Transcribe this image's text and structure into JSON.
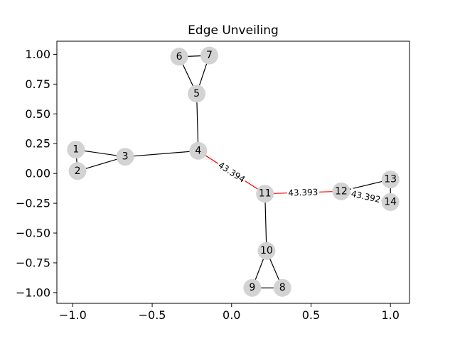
{
  "chart_data": {
    "type": "network",
    "title": "Edge Unveiling",
    "xlim": [
      -1.1,
      1.12
    ],
    "ylim": [
      -1.09,
      1.11
    ],
    "x_ticks": [
      "−1.0",
      "−0.5",
      "0.0",
      "0.5",
      "1.0"
    ],
    "x_tick_values": [
      -1.0,
      -0.5,
      0.0,
      0.5,
      1.0
    ],
    "y_ticks": [
      "1.00",
      "0.75",
      "0.50",
      "0.25",
      "0.00",
      "−0.25",
      "−0.50",
      "−0.75",
      "−1.00"
    ],
    "y_tick_values": [
      1.0,
      0.75,
      0.5,
      0.25,
      0.0,
      -0.25,
      -0.5,
      -0.75,
      -1.0
    ],
    "node_color": "#d3d3d3",
    "nodes": [
      {
        "id": "1",
        "x": -0.98,
        "y": 0.2
      },
      {
        "id": "2",
        "x": -0.97,
        "y": 0.02
      },
      {
        "id": "3",
        "x": -0.67,
        "y": 0.14
      },
      {
        "id": "4",
        "x": -0.21,
        "y": 0.19
      },
      {
        "id": "5",
        "x": -0.22,
        "y": 0.67
      },
      {
        "id": "6",
        "x": -0.33,
        "y": 0.98
      },
      {
        "id": "7",
        "x": -0.14,
        "y": 0.99
      },
      {
        "id": "8",
        "x": 0.32,
        "y": -0.96
      },
      {
        "id": "9",
        "x": 0.13,
        "y": -0.96
      },
      {
        "id": "10",
        "x": 0.22,
        "y": -0.65
      },
      {
        "id": "11",
        "x": 0.21,
        "y": -0.17
      },
      {
        "id": "12",
        "x": 0.69,
        "y": -0.15
      },
      {
        "id": "13",
        "x": 1.0,
        "y": -0.05
      },
      {
        "id": "14",
        "x": 1.0,
        "y": -0.24
      }
    ],
    "edges": [
      {
        "source": "1",
        "target": "2",
        "color": "#000000"
      },
      {
        "source": "1",
        "target": "3",
        "color": "#000000"
      },
      {
        "source": "2",
        "target": "3",
        "color": "#000000"
      },
      {
        "source": "3",
        "target": "4",
        "color": "#000000"
      },
      {
        "source": "4",
        "target": "5",
        "color": "#000000"
      },
      {
        "source": "5",
        "target": "6",
        "color": "#000000"
      },
      {
        "source": "5",
        "target": "7",
        "color": "#000000"
      },
      {
        "source": "6",
        "target": "7",
        "color": "#000000"
      },
      {
        "source": "4",
        "target": "11",
        "color": "#ff0000",
        "label": "43.394"
      },
      {
        "source": "11",
        "target": "12",
        "color": "#ff0000",
        "label": "43.393"
      },
      {
        "source": "12",
        "target": "14",
        "color": "#ff0000",
        "label": "43.392"
      },
      {
        "source": "12",
        "target": "13",
        "color": "#000000"
      },
      {
        "source": "13",
        "target": "14",
        "color": "#000000"
      },
      {
        "source": "11",
        "target": "10",
        "color": "#000000"
      },
      {
        "source": "10",
        "target": "9",
        "color": "#000000"
      },
      {
        "source": "10",
        "target": "8",
        "color": "#000000"
      },
      {
        "source": "9",
        "target": "8",
        "color": "#000000"
      }
    ]
  }
}
